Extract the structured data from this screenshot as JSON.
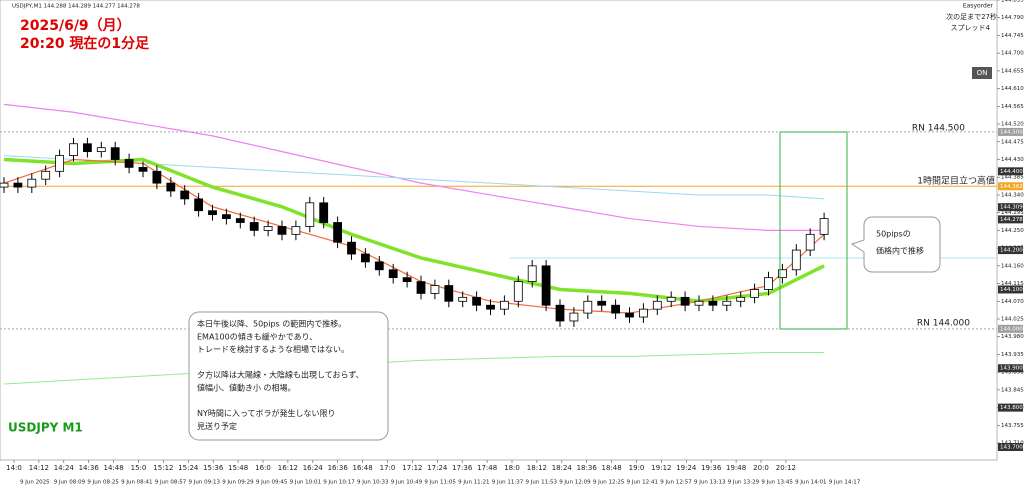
{
  "header": {
    "symbol_line": "USDJPY,M1 144.288 144.289 144.277 144.278",
    "easyorder": "Easyorder",
    "next_bar": "次の足まで27秒",
    "spread": "スプレッド4",
    "on_button": "ON"
  },
  "overlay": {
    "title_line1": "2025/6/9（月）",
    "title_line2": "20:20 現在の1分足",
    "rn_high": "RN 144.500",
    "rn_low": "RN 144.000",
    "hourly_high": "1時間足目立つ高値",
    "callout": [
      "50pipsの",
      "価格内で推移"
    ],
    "note": [
      "本日午後以降、50pips の範囲内で推移。",
      "EMA100の傾きも緩やかであり、",
      "トレードを検討するような相場ではない。",
      "",
      "夕方以降は大陽線・大陰線も出現しておらず、",
      "値幅小、値動き小 の相場。",
      "",
      "NY時間に入ってボラが発生しない限り",
      "見送り予定"
    ],
    "pair_label": "USDJPY M1"
  },
  "chart_data": {
    "type": "candlestick",
    "ylim": [
      143.667,
      144.835
    ],
    "yticks": [
      {
        "value": 144.835,
        "label": "144.835"
      },
      {
        "value": 144.79,
        "label": "144.790"
      },
      {
        "value": 144.745,
        "label": "144.745"
      },
      {
        "value": 144.7,
        "label": "144.700"
      },
      {
        "value": 144.655,
        "label": "144.655"
      },
      {
        "value": 144.61,
        "label": "144.610"
      },
      {
        "value": 144.565,
        "label": "144.565"
      },
      {
        "value": 144.52,
        "label": "144.520"
      },
      {
        "value": 144.475,
        "label": "144.475"
      },
      {
        "value": 144.43,
        "label": "144.430"
      },
      {
        "value": 144.385,
        "label": "144.385"
      },
      {
        "value": 144.34,
        "label": "144.340"
      },
      {
        "value": 144.295,
        "label": "144.295"
      },
      {
        "value": 144.25,
        "label": "144.250"
      },
      {
        "value": 144.205,
        "label": "144.205"
      },
      {
        "value": 144.16,
        "label": "144.160"
      },
      {
        "value": 144.115,
        "label": "144.115"
      },
      {
        "value": 144.07,
        "label": "144.070"
      },
      {
        "value": 144.025,
        "label": "144.025"
      },
      {
        "value": 143.98,
        "label": "143.980"
      },
      {
        "value": 143.935,
        "label": "143.935"
      },
      {
        "value": 143.89,
        "label": "143.890"
      },
      {
        "value": 143.845,
        "label": "143.845"
      },
      {
        "value": 143.8,
        "label": "143.800"
      },
      {
        "value": 143.755,
        "label": "143.755"
      },
      {
        "value": 143.71,
        "label": "143.710"
      }
    ],
    "price_tags": [
      {
        "value": 144.5,
        "label": "144.500",
        "color": "#9e9e9e"
      },
      {
        "value": 144.4,
        "label": "144.400",
        "color": "#333333"
      },
      {
        "value": 144.362,
        "label": "144.362",
        "color": "#f5a623"
      },
      {
        "value": 144.309,
        "label": "144.309",
        "color": "#333333"
      },
      {
        "value": 144.278,
        "label": "144.278",
        "color": "#333333"
      },
      {
        "value": 144.2,
        "label": "144.200",
        "color": "#333333"
      },
      {
        "value": 144.1,
        "label": "144.100",
        "color": "#333333"
      },
      {
        "value": 144.0,
        "label": "144.000",
        "color": "#9e9e9e"
      },
      {
        "value": 143.9,
        "label": "143.900",
        "color": "#333333"
      },
      {
        "value": 143.8,
        "label": "143.800",
        "color": "#333333"
      },
      {
        "value": 143.7,
        "label": "143.700",
        "color": "#333333"
      }
    ],
    "time_labels": [
      "14:0",
      "14:12",
      "14:24",
      "14:36",
      "14:48",
      "15:0",
      "15:12",
      "15:24",
      "15:36",
      "15:48",
      "16:0",
      "16:12",
      "16:24",
      "16:36",
      "16:48",
      "17:0",
      "17:12",
      "17:24",
      "17:36",
      "17:48",
      "18:0",
      "18:12",
      "18:24",
      "18:36",
      "18:48",
      "19:0",
      "19:12",
      "19:24",
      "19:36",
      "19:48",
      "20:0",
      "20:12"
    ],
    "date_labels": [
      "9 Jun 2025",
      "9 Jun 08:09",
      "9 Jun 08:25",
      "9 Jun 08:41",
      "9 Jun 08:57",
      "9 Jun 09:13",
      "9 Jun 09:29",
      "9 Jun 09:45",
      "9 Jun 10:01",
      "9 Jun 10:17",
      "9 Jun 10:33",
      "9 Jun 10:49",
      "9 Jun 11:05",
      "9 Jun 11:21",
      "9 Jun 11:37",
      "9 Jun 11:53",
      "9 Jun 12:09",
      "9 Jun 12:25",
      "9 Jun 12:41",
      "9 Jun 12:57",
      "9 Jun 13:13",
      "9 Jun 13:29",
      "9 Jun 13:45",
      "9 Jun 14:01",
      "9 Jun 14:17"
    ],
    "open": [
      144.36,
      144.37,
      144.36,
      144.38,
      144.4,
      144.44,
      144.47,
      144.45,
      144.46,
      144.43,
      144.41,
      144.4,
      144.37,
      144.35,
      144.33,
      144.3,
      144.29,
      144.28,
      144.27,
      144.25,
      144.26,
      144.24,
      144.26,
      144.32,
      144.27,
      144.22,
      144.19,
      144.17,
      144.15,
      144.13,
      144.12,
      144.09,
      144.11,
      144.07,
      144.08,
      144.06,
      144.05,
      144.07,
      144.12,
      144.16,
      144.06,
      144.02,
      144.04,
      144.07,
      144.06,
      144.04,
      144.03,
      144.05,
      144.07,
      144.08,
      144.06,
      144.07,
      144.06,
      144.07,
      144.08,
      144.1,
      144.13,
      144.15,
      144.2,
      144.24
    ],
    "high": [
      144.385,
      144.385,
      144.395,
      144.415,
      144.455,
      144.485,
      144.485,
      144.475,
      144.475,
      144.445,
      144.425,
      144.415,
      144.385,
      144.365,
      144.345,
      144.315,
      144.305,
      144.295,
      144.285,
      144.275,
      144.275,
      144.275,
      144.335,
      144.335,
      144.285,
      144.235,
      144.205,
      144.185,
      144.165,
      144.145,
      144.135,
      144.125,
      144.125,
      144.095,
      144.095,
      144.075,
      144.085,
      144.135,
      144.175,
      144.175,
      144.075,
      144.055,
      144.085,
      144.085,
      144.075,
      144.055,
      144.065,
      144.085,
      144.095,
      144.095,
      144.085,
      144.085,
      144.085,
      144.095,
      144.115,
      144.145,
      144.165,
      144.215,
      144.255,
      144.295
    ],
    "low": [
      144.345,
      144.345,
      144.345,
      144.365,
      144.385,
      144.425,
      144.435,
      144.435,
      144.415,
      144.395,
      144.385,
      144.355,
      144.335,
      144.315,
      144.285,
      144.275,
      144.265,
      144.255,
      144.235,
      144.235,
      144.225,
      144.225,
      144.245,
      144.255,
      144.205,
      144.175,
      144.155,
      144.135,
      144.115,
      144.105,
      144.075,
      144.075,
      144.055,
      144.055,
      144.045,
      144.035,
      144.035,
      144.055,
      144.105,
      144.045,
      144.005,
      144.005,
      144.025,
      144.045,
      144.025,
      144.015,
      144.015,
      144.035,
      144.055,
      144.045,
      144.045,
      144.045,
      144.045,
      144.055,
      144.065,
      144.085,
      144.115,
      144.135,
      144.185,
      144.225
    ],
    "close": [
      144.37,
      144.36,
      144.38,
      144.4,
      144.44,
      144.47,
      144.45,
      144.46,
      144.43,
      144.41,
      144.4,
      144.37,
      144.35,
      144.33,
      144.3,
      144.29,
      144.28,
      144.27,
      144.25,
      144.26,
      144.24,
      144.26,
      144.32,
      144.27,
      144.22,
      144.19,
      144.17,
      144.15,
      144.13,
      144.12,
      144.09,
      144.11,
      144.07,
      144.08,
      144.06,
      144.05,
      144.07,
      144.12,
      144.16,
      144.06,
      144.02,
      144.04,
      144.07,
      144.06,
      144.04,
      144.03,
      144.05,
      144.07,
      144.08,
      144.06,
      144.07,
      144.06,
      144.07,
      144.08,
      144.1,
      144.13,
      144.15,
      144.2,
      144.24,
      144.28
    ],
    "indicators": [
      {
        "color": "#ee82ee",
        "width": 1.2,
        "x": [
          0,
          5,
          10,
          15,
          20,
          25,
          30,
          35,
          40,
          45,
          50,
          55,
          59
        ],
        "values": [
          144.57,
          144.55,
          144.52,
          144.49,
          144.45,
          144.41,
          144.37,
          144.34,
          144.31,
          144.28,
          144.26,
          144.25,
          144.25
        ]
      },
      {
        "color": "#9ad9ef",
        "width": 1,
        "x": [
          0,
          5,
          10,
          15,
          20,
          25,
          30,
          35,
          40,
          45,
          50,
          55,
          59
        ],
        "values": [
          144.44,
          144.43,
          144.42,
          144.41,
          144.4,
          144.39,
          144.38,
          144.37,
          144.36,
          144.35,
          144.34,
          144.34,
          144.33
        ]
      },
      {
        "color": "#7fe32a",
        "width": 3.5,
        "x": [
          0,
          5,
          10,
          15,
          20,
          25,
          30,
          35,
          40,
          45,
          50,
          55,
          59
        ],
        "values": [
          144.43,
          144.42,
          144.43,
          144.36,
          144.31,
          144.24,
          144.18,
          144.14,
          144.1,
          144.09,
          144.07,
          144.09,
          144.16
        ]
      },
      {
        "color": "#f26b3a",
        "width": 1.2,
        "x": [
          0,
          5,
          10,
          15,
          20,
          25,
          30,
          35,
          40,
          45,
          50,
          55,
          59
        ],
        "values": [
          144.37,
          144.43,
          144.42,
          144.31,
          144.26,
          144.21,
          144.12,
          144.07,
          144.05,
          144.04,
          144.07,
          144.11,
          144.24
        ]
      },
      {
        "color": "#90ee90",
        "width": 1,
        "x": [
          0,
          5,
          10,
          15,
          20,
          25,
          30,
          35,
          40,
          45,
          50,
          55,
          59
        ],
        "values": [
          143.86,
          143.87,
          143.88,
          143.89,
          143.9,
          143.91,
          143.92,
          143.925,
          143.93,
          143.93,
          143.935,
          143.94,
          143.94
        ]
      }
    ],
    "levels": [
      {
        "value": 144.5,
        "color": "#aaaaaa",
        "dash": true
      },
      {
        "value": 144.0,
        "color": "#aaaaaa",
        "dash": true
      },
      {
        "value": 144.362,
        "color": "#f5a623",
        "dash": false
      }
    ]
  }
}
